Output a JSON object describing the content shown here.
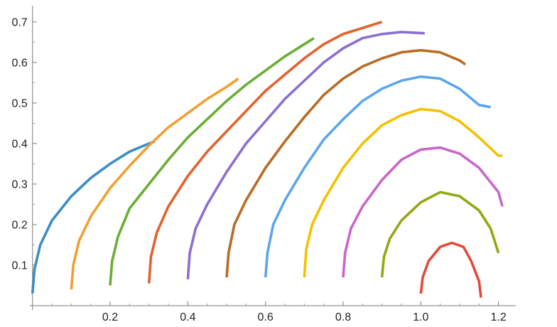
{
  "chart_data": {
    "type": "line",
    "title": "",
    "xlabel": "",
    "ylabel": "",
    "xlim": [
      -0.005,
      1.23
    ],
    "ylim": [
      0,
      0.74
    ],
    "grid": false,
    "legend": "none",
    "x_ticks": [
      0.2,
      0.4,
      0.6,
      0.8,
      1.0,
      1.2
    ],
    "y_ticks": [
      0.1,
      0.2,
      0.3,
      0.4,
      0.5,
      0.6,
      0.7
    ],
    "x_tick_labels": [
      "0.2",
      "0.4",
      "0.6",
      "0.8",
      "1.0",
      "1.2"
    ],
    "y_tick_labels": [
      "0.1",
      "0.2",
      "0.3",
      "0.4",
      "0.5",
      "0.6",
      "0.7"
    ],
    "series": [
      {
        "color": "#3c8dc4",
        "x": [
          0.0,
          0.005,
          0.02,
          0.05,
          0.1,
          0.15,
          0.2,
          0.25,
          0.3,
          0.315
        ],
        "y": [
          0.03,
          0.09,
          0.15,
          0.21,
          0.27,
          0.315,
          0.35,
          0.38,
          0.4,
          0.405
        ]
      },
      {
        "color": "#f0a030",
        "x": [
          0.1,
          0.105,
          0.12,
          0.15,
          0.2,
          0.25,
          0.3,
          0.35,
          0.4,
          0.45,
          0.5,
          0.53
        ],
        "y": [
          0.04,
          0.1,
          0.16,
          0.22,
          0.29,
          0.345,
          0.395,
          0.44,
          0.475,
          0.51,
          0.54,
          0.56
        ]
      },
      {
        "color": "#6aae35",
        "x": [
          0.2,
          0.205,
          0.22,
          0.25,
          0.3,
          0.35,
          0.4,
          0.45,
          0.5,
          0.55,
          0.6,
          0.65,
          0.7,
          0.725
        ],
        "y": [
          0.05,
          0.11,
          0.17,
          0.24,
          0.3,
          0.36,
          0.415,
          0.46,
          0.505,
          0.545,
          0.58,
          0.615,
          0.645,
          0.66
        ]
      },
      {
        "color": "#e2622d",
        "x": [
          0.3,
          0.305,
          0.32,
          0.35,
          0.4,
          0.45,
          0.5,
          0.55,
          0.6,
          0.65,
          0.7,
          0.75,
          0.8,
          0.85,
          0.9
        ],
        "y": [
          0.055,
          0.12,
          0.18,
          0.245,
          0.32,
          0.38,
          0.43,
          0.48,
          0.53,
          0.57,
          0.61,
          0.645,
          0.67,
          0.685,
          0.7
        ]
      },
      {
        "color": "#8b6fd0",
        "x": [
          0.4,
          0.405,
          0.42,
          0.45,
          0.5,
          0.55,
          0.6,
          0.65,
          0.7,
          0.75,
          0.8,
          0.85,
          0.9,
          0.95,
          1.01
        ],
        "y": [
          0.065,
          0.13,
          0.19,
          0.25,
          0.33,
          0.4,
          0.455,
          0.51,
          0.555,
          0.6,
          0.635,
          0.66,
          0.67,
          0.675,
          0.672
        ]
      },
      {
        "color": "#b96b24",
        "x": [
          0.5,
          0.505,
          0.52,
          0.55,
          0.6,
          0.65,
          0.7,
          0.75,
          0.8,
          0.85,
          0.9,
          0.95,
          1.0,
          1.05,
          1.1,
          1.115
        ],
        "y": [
          0.07,
          0.13,
          0.2,
          0.26,
          0.34,
          0.405,
          0.465,
          0.52,
          0.56,
          0.59,
          0.61,
          0.625,
          0.63,
          0.625,
          0.605,
          0.595
        ]
      },
      {
        "color": "#5ca6ec",
        "x": [
          0.6,
          0.605,
          0.62,
          0.65,
          0.7,
          0.75,
          0.8,
          0.85,
          0.9,
          0.95,
          1.0,
          1.05,
          1.1,
          1.15,
          1.18
        ],
        "y": [
          0.07,
          0.13,
          0.2,
          0.26,
          0.34,
          0.41,
          0.46,
          0.505,
          0.535,
          0.555,
          0.565,
          0.56,
          0.535,
          0.495,
          0.49
        ]
      },
      {
        "color": "#f6c000",
        "x": [
          0.7,
          0.705,
          0.72,
          0.75,
          0.8,
          0.85,
          0.9,
          0.95,
          1.0,
          1.05,
          1.1,
          1.15,
          1.2,
          1.21
        ],
        "y": [
          0.07,
          0.14,
          0.2,
          0.26,
          0.34,
          0.4,
          0.445,
          0.47,
          0.485,
          0.48,
          0.455,
          0.415,
          0.37,
          0.37
        ]
      },
      {
        "color": "#c866cc",
        "x": [
          0.8,
          0.805,
          0.82,
          0.85,
          0.9,
          0.95,
          1.0,
          1.05,
          1.1,
          1.15,
          1.2,
          1.21
        ],
        "y": [
          0.07,
          0.13,
          0.19,
          0.245,
          0.31,
          0.36,
          0.385,
          0.39,
          0.375,
          0.34,
          0.28,
          0.245
        ]
      },
      {
        "color": "#8eaa14",
        "x": [
          0.9,
          0.905,
          0.92,
          0.95,
          1.0,
          1.05,
          1.1,
          1.15,
          1.18,
          1.2
        ],
        "y": [
          0.07,
          0.12,
          0.165,
          0.21,
          0.255,
          0.28,
          0.27,
          0.235,
          0.19,
          0.13
        ]
      },
      {
        "color": "#e14a3c",
        "x": [
          1.0,
          1.005,
          1.02,
          1.05,
          1.08,
          1.11,
          1.13,
          1.15,
          1.155
        ],
        "y": [
          0.03,
          0.07,
          0.11,
          0.145,
          0.155,
          0.145,
          0.11,
          0.06,
          0.02
        ]
      }
    ]
  }
}
